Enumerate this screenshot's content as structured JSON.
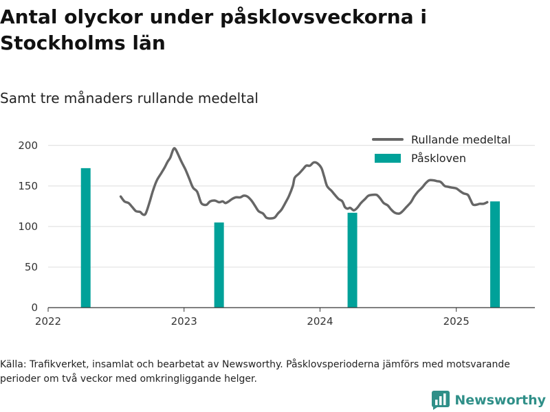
{
  "header": {
    "title": "Antal olyckor under påsklovsveckorna i Stockholms län",
    "subtitle": "Samt tre månaders rullande medeltal"
  },
  "footer": {
    "source": "Källa: Trafikverket, insamlat och bearbetat av Newsworthy. Påsklovsperioderna jämförs med motsvarande perioder om två veckor med omkringliggande helger.",
    "brand": "Newsworthy",
    "brand_icon": "bar-chart-icon"
  },
  "colors": {
    "line": "#666666",
    "bar": "#00a199",
    "grid": "#dcdcdc",
    "axis": "#333333",
    "brand": "#2f8f88"
  },
  "chart_data": {
    "type": "bar+line",
    "title": "Antal olyckor under påsklovsveckorna i Stockholms län",
    "subtitle": "Samt tre månaders rullande medeltal",
    "xlabel": "",
    "ylabel": "",
    "xlim": [
      "2022-01-01",
      "2025-07-31"
    ],
    "ylim": [
      0,
      210
    ],
    "x_ticks": [
      "2022",
      "2023",
      "2024",
      "2025"
    ],
    "x_tick_dates": [
      "2022-01-01",
      "2023-01-01",
      "2024-01-01",
      "2025-01-01"
    ],
    "y_ticks": [
      0,
      50,
      100,
      150,
      200
    ],
    "grid": "horizontal",
    "legend_position": "top-right",
    "series": [
      {
        "name": "Rullande medeltal",
        "type": "line",
        "points": [
          [
            "2022-07-15",
            137
          ],
          [
            "2022-07-25",
            131
          ],
          [
            "2022-08-05",
            129
          ],
          [
            "2022-08-15",
            124
          ],
          [
            "2022-08-25",
            119
          ],
          [
            "2022-09-05",
            118
          ],
          [
            "2022-09-12",
            115
          ],
          [
            "2022-09-20",
            116
          ],
          [
            "2022-10-01",
            131
          ],
          [
            "2022-10-10",
            145
          ],
          [
            "2022-10-20",
            157
          ],
          [
            "2022-11-01",
            166
          ],
          [
            "2022-11-10",
            173
          ],
          [
            "2022-11-18",
            180
          ],
          [
            "2022-11-25",
            185
          ],
          [
            "2022-12-03",
            195
          ],
          [
            "2022-12-08",
            196
          ],
          [
            "2022-12-15",
            190
          ],
          [
            "2022-12-25",
            180
          ],
          [
            "2023-01-05",
            170
          ],
          [
            "2023-01-15",
            159
          ],
          [
            "2023-01-25",
            148
          ],
          [
            "2023-02-05",
            143
          ],
          [
            "2023-02-15",
            130
          ],
          [
            "2023-02-22",
            127
          ],
          [
            "2023-03-03",
            127
          ],
          [
            "2023-03-12",
            131
          ],
          [
            "2023-03-25",
            132
          ],
          [
            "2023-04-05",
            130
          ],
          [
            "2023-04-15",
            131
          ],
          [
            "2023-04-22",
            129
          ],
          [
            "2023-05-01",
            131
          ],
          [
            "2023-05-10",
            134
          ],
          [
            "2023-05-20",
            136
          ],
          [
            "2023-06-01",
            136
          ],
          [
            "2023-06-10",
            138
          ],
          [
            "2023-06-20",
            137
          ],
          [
            "2023-07-01",
            132
          ],
          [
            "2023-07-10",
            126
          ],
          [
            "2023-07-20",
            119
          ],
          [
            "2023-08-01",
            116
          ],
          [
            "2023-08-10",
            111
          ],
          [
            "2023-08-20",
            110
          ],
          [
            "2023-09-01",
            111
          ],
          [
            "2023-09-10",
            116
          ],
          [
            "2023-09-20",
            121
          ],
          [
            "2023-10-01",
            130
          ],
          [
            "2023-10-10",
            138
          ],
          [
            "2023-10-20",
            150
          ],
          [
            "2023-10-25",
            160
          ],
          [
            "2023-11-05",
            165
          ],
          [
            "2023-11-15",
            170
          ],
          [
            "2023-11-25",
            175
          ],
          [
            "2023-12-05",
            175
          ],
          [
            "2023-12-15",
            179
          ],
          [
            "2023-12-25",
            178
          ],
          [
            "2024-01-05",
            172
          ],
          [
            "2024-01-12",
            162
          ],
          [
            "2024-01-20",
            150
          ],
          [
            "2024-02-01",
            144
          ],
          [
            "2024-02-10",
            139
          ],
          [
            "2024-02-20",
            134
          ],
          [
            "2024-03-01",
            131
          ],
          [
            "2024-03-08",
            124
          ],
          [
            "2024-03-15",
            122
          ],
          [
            "2024-03-22",
            123
          ],
          [
            "2024-04-01",
            120
          ],
          [
            "2024-04-10",
            123
          ],
          [
            "2024-04-20",
            129
          ],
          [
            "2024-05-01",
            134
          ],
          [
            "2024-05-10",
            138
          ],
          [
            "2024-05-20",
            139
          ],
          [
            "2024-06-01",
            139
          ],
          [
            "2024-06-10",
            135
          ],
          [
            "2024-06-20",
            129
          ],
          [
            "2024-07-01",
            126
          ],
          [
            "2024-07-10",
            121
          ],
          [
            "2024-07-20",
            117
          ],
          [
            "2024-08-01",
            116
          ],
          [
            "2024-08-10",
            119
          ],
          [
            "2024-08-20",
            124
          ],
          [
            "2024-09-01",
            130
          ],
          [
            "2024-09-10",
            137
          ],
          [
            "2024-09-20",
            143
          ],
          [
            "2024-10-01",
            148
          ],
          [
            "2024-10-10",
            153
          ],
          [
            "2024-10-20",
            157
          ],
          [
            "2024-11-01",
            157
          ],
          [
            "2024-11-10",
            156
          ],
          [
            "2024-11-20",
            155
          ],
          [
            "2024-12-01",
            150
          ],
          [
            "2024-12-10",
            149
          ],
          [
            "2024-12-20",
            148
          ],
          [
            "2025-01-01",
            147
          ],
          [
            "2025-01-10",
            144
          ],
          [
            "2025-01-20",
            141
          ],
          [
            "2025-02-01",
            139
          ],
          [
            "2025-02-08",
            133
          ],
          [
            "2025-02-15",
            127
          ],
          [
            "2025-02-25",
            127
          ],
          [
            "2025-03-05",
            128
          ],
          [
            "2025-03-15",
            128
          ],
          [
            "2025-03-25",
            130
          ]
        ]
      },
      {
        "name": "Påskloven",
        "type": "bar",
        "points": [
          [
            "2022-04-12",
            172
          ],
          [
            "2023-04-05",
            105
          ],
          [
            "2024-03-28",
            117
          ],
          [
            "2025-04-15",
            131
          ]
        ]
      }
    ]
  }
}
